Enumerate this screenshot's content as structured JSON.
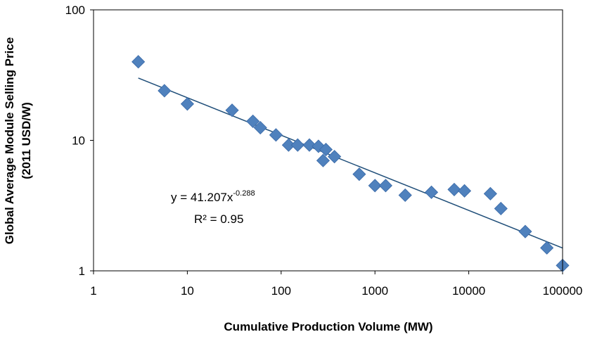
{
  "chart_data": {
    "type": "scatter",
    "title": "",
    "xlabel": "Cumulative Production Volume (MW)",
    "ylabel_line1": "Global Average Module Selling Price",
    "ylabel_line2": "(2011 USD/W)",
    "xscale": "log",
    "yscale": "log",
    "xlim": [
      1,
      100000
    ],
    "ylim": [
      1,
      100
    ],
    "x_ticks": [
      "1",
      "10",
      "100",
      "1000",
      "10000",
      "100000"
    ],
    "y_ticks": [
      "1",
      "10",
      "100"
    ],
    "grid": false,
    "legend": "none",
    "marker_color": "#4F81BD",
    "trendline_color": "#1F4E79",
    "series": [
      {
        "x": [
          3,
          5.7,
          10,
          30,
          50,
          60,
          88,
          120,
          150,
          200,
          250,
          280,
          300,
          370,
          680,
          1000,
          1300,
          2100,
          4000,
          7000,
          9000,
          17000,
          22000,
          40000,
          68000,
          100000
        ],
        "y": [
          40,
          24,
          19,
          17,
          14,
          12.5,
          11,
          9.2,
          9.2,
          9.2,
          9.0,
          7.0,
          8.5,
          7.5,
          5.5,
          4.5,
          4.5,
          3.8,
          4.0,
          4.2,
          4.1,
          3.9,
          3.0,
          2.0,
          1.5,
          1.1
        ]
      }
    ],
    "trendline": {
      "equation_prefix": "y = 41.207x",
      "equation_exponent": "-0.288",
      "r_squared": "R² = 0.95",
      "coefficient": 41.207,
      "exponent": -0.288,
      "x_range": [
        3,
        100000
      ]
    }
  }
}
